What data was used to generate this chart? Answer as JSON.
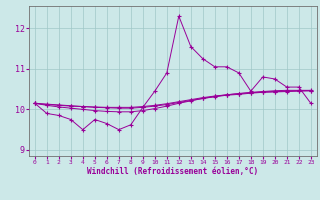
{
  "xlabel": "Windchill (Refroidissement éolien,°C)",
  "x_values": [
    0,
    1,
    2,
    3,
    4,
    5,
    6,
    7,
    8,
    9,
    10,
    11,
    12,
    13,
    14,
    15,
    16,
    17,
    18,
    19,
    20,
    21,
    22,
    23
  ],
  "line1": [
    10.15,
    9.9,
    9.85,
    9.75,
    9.5,
    9.75,
    9.65,
    9.5,
    9.62,
    10.05,
    10.45,
    10.9,
    12.3,
    11.55,
    11.25,
    11.05,
    11.05,
    10.9,
    10.45,
    10.8,
    10.75,
    10.55,
    10.55,
    10.15
  ],
  "line2": [
    10.15,
    10.13,
    10.11,
    10.09,
    10.07,
    10.05,
    10.04,
    10.03,
    10.03,
    10.05,
    10.08,
    10.12,
    10.17,
    10.22,
    10.27,
    10.31,
    10.35,
    10.37,
    10.4,
    10.42,
    10.43,
    10.44,
    10.45,
    10.46
  ],
  "line3": [
    10.15,
    10.12,
    10.1,
    10.08,
    10.07,
    10.06,
    10.05,
    10.05,
    10.05,
    10.07,
    10.1,
    10.14,
    10.19,
    10.24,
    10.29,
    10.33,
    10.36,
    10.39,
    10.41,
    10.43,
    10.44,
    10.45,
    10.46,
    10.46
  ],
  "line4": [
    10.15,
    10.1,
    10.06,
    10.03,
    10.0,
    9.97,
    9.95,
    9.94,
    9.94,
    9.97,
    10.02,
    10.08,
    10.15,
    10.21,
    10.27,
    10.32,
    10.36,
    10.39,
    10.42,
    10.44,
    10.46,
    10.47,
    10.47,
    10.47
  ],
  "line_color": "#990099",
  "bg_color": "#cce8e8",
  "grid_color": "#a0c8c8",
  "ylim": [
    8.85,
    12.55
  ],
  "yticks": [
    9,
    10,
    11,
    12
  ],
  "xticks": [
    0,
    1,
    2,
    3,
    4,
    5,
    6,
    7,
    8,
    9,
    10,
    11,
    12,
    13,
    14,
    15,
    16,
    17,
    18,
    19,
    20,
    21,
    22,
    23
  ]
}
